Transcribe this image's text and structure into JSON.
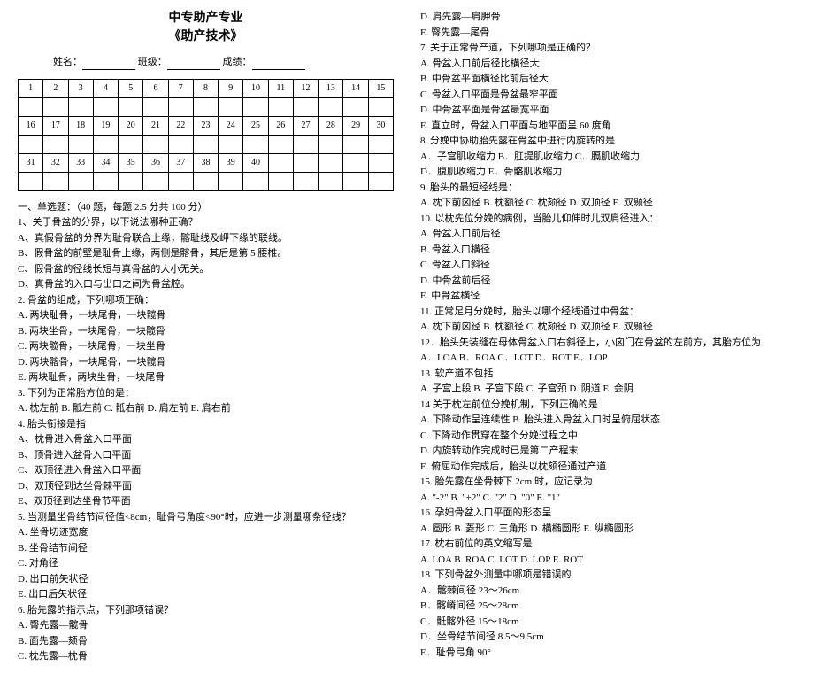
{
  "header": {
    "title1": "中专助产专业",
    "title2": "《助产技术》",
    "name_label": "姓名：",
    "class_label": "班级：",
    "score_label": "成绩："
  },
  "grid": {
    "rows": [
      [
        "1",
        "2",
        "3",
        "4",
        "5",
        "6",
        "7",
        "8",
        "9",
        "10",
        "11",
        "12",
        "13",
        "14",
        "15"
      ],
      [
        "",
        "",
        "",
        "",
        "",
        "",
        "",
        "",
        "",
        "",
        "",
        "",
        "",
        "",
        ""
      ],
      [
        "16",
        "17",
        "18",
        "19",
        "20",
        "21",
        "22",
        "23",
        "24",
        "25",
        "26",
        "27",
        "28",
        "29",
        "30"
      ],
      [
        "",
        "",
        "",
        "",
        "",
        "",
        "",
        "",
        "",
        "",
        "",
        "",
        "",
        "",
        ""
      ],
      [
        "31",
        "32",
        "33",
        "34",
        "35",
        "36",
        "37",
        "38",
        "39",
        "40",
        "",
        "",
        "",
        "",
        ""
      ],
      [
        "",
        "",
        "",
        "",
        "",
        "",
        "",
        "",
        "",
        "",
        "",
        "",
        "",
        "",
        ""
      ]
    ]
  },
  "left": [
    "一、单选题：（40 题，每题 2.5 分共 100 分）",
    "1、关于骨盆的分界，以下说法哪种正确？",
    "A、真假骨盆的分界为耻骨联合上缘，髂耻线及岬下缘的联线。",
    "B、假骨盆的前壁是耻骨上缘，两侧是髂骨，其后是第 5 腰椎。",
    "C、假骨盆的径线长短与真骨盆的大小无关。",
    "D、真骨盆的入口与出口之间为骨盆腔。",
    "2. 骨盆的组成，下列哪项正确：",
    "A. 两块耻骨，一块尾骨，一块髋骨",
    "B. 两块坐骨，一块尾骨，一块髋骨",
    "C. 两块髋骨，一块尾骨，一块坐骨",
    "D. 两块髂骨，一块尾骨，一块髋骨",
    "E. 两块耻骨，两块坐骨，一块尾骨",
    "3. 下列为正常胎方位的是：",
    "A. 枕左前    B. 骶左前    C. 骶右前    D. 肩左前    E. 肩右前",
    "4. 胎头衔接是指",
    "A、枕骨进入骨盆入口平面",
    "B、顶骨进入盆骨入口平面",
    "C、双顶径进入骨盆入口平面",
    "D、双顶径到达坐骨棘平面",
    "E、双顶径到达坐骨节平面",
    "5. 当测量坐骨结节间径值<8cm，耻骨弓角度<90°时，应进一步测量哪条径线？",
    "A. 坐骨切迹宽度",
    "B. 坐骨结节间径",
    "C. 对角径",
    "D. 出口前矢状径",
    "E. 出口后矢状径",
    "6. 胎先露的指示点，下列那项错误？",
    "A. 臀先露—髋骨",
    "B. 面先露—颏骨",
    "C. 枕先露—枕骨"
  ],
  "right": [
    "D. 肩先露—肩胛骨",
    "E. 臀先露—尾骨",
    "7. 关于正常骨产道，下列哪项是正确的？",
    "A. 骨盆入口前后径比横径大",
    "B. 中骨盆平面横径比前后径大",
    "C. 骨盆入口平面是骨盆最窄平面",
    "D. 中骨盆平面是骨盆最宽平面",
    "E. 直立时，骨盆入口平面与地平面呈 60 度角",
    "8. 分娩中协助胎先露在骨盆中进行内旋转的是",
    "A．子宫肌收缩力    B．肛提肌收缩力    C．膈肌收缩力",
    "D．腹肌收缩力      E．骨骼肌收缩力",
    "9. 胎头的最短经线是：",
    "A. 枕下前囟径   B. 枕额径   C. 枕颏径   D. 双顶径   E. 双颞径",
    "10. 以枕先位分娩的病例，当胎儿仰伸时儿双肩径进入：",
    "A. 骨盆入口前后径",
    "B. 骨盆入口横径",
    "C. 骨盆入口斜径",
    "D. 中骨盆前后径",
    "E. 中骨盆横径",
    "11. 正常足月分娩时，胎头以哪个经线通过中骨盆：",
    "A. 枕下前囟径   B. 枕额径   C. 枕颏径   D. 双顶径   E. 双颞径",
    "12．胎头矢装缝在母体骨盆入口右斜径上，小囟门在骨盆的左前方，其胎方位为",
    "A．LOA   B．ROA   C．LOT   D．ROT   E．LOP",
    "13. 软产道不包括",
    "A. 子宫上段   B. 子宫下段   C. 子宫颈   D. 阴道   E. 会阴",
    "14  关于枕左前位分娩机制，下列正确的是",
    "A. 下降动作呈连续性  B. 胎头进入骨盆入口时呈俯屈状态",
    "C. 下降动作贯穿在整个分娩过程之中",
    "D. 内旋转动作完成时已是第二产程末",
    "E. 俯屈动作完成后，胎头以枕颏径通过产道",
    "15. 胎先露在坐骨棘下 2cm 时，应记录为",
    "A. \"-2\"   B. \"+2\"   C. \"2\"   D. \"0\"   E. \"1\"",
    "16. 孕妇骨盆入口平面的形态呈",
    "A. 圆形   B. 菱形   C. 三角形   D. 横椭圆形   E. 纵椭圆形",
    "17. 枕右前位的英文缩写是",
    "A. LOA   B. ROA   C. LOT   D. LOP   E. ROT",
    "18. 下列骨盆外测量中哪项是错误的",
    "A．髂棘间径 23～26cm",
    "B．髂嵴间径 25～28cm",
    "C．骶髂外径 15～18cm",
    "D．坐骨结节间径 8.5～9.5cm",
    "E．耻骨弓角 90°"
  ]
}
